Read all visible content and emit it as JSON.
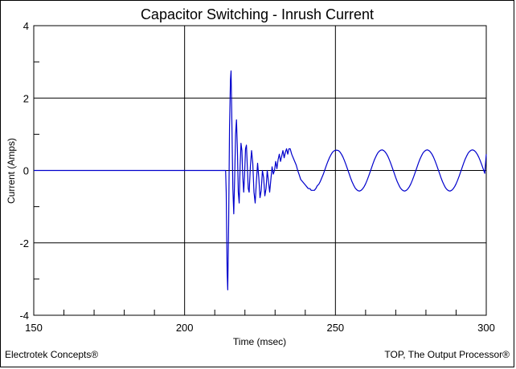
{
  "chart_data": {
    "type": "line",
    "title": "Capacitor Switching - Inrush Current",
    "xlabel": "Time (msec)",
    "ylabel": "Current (Amps)",
    "xlim": [
      150,
      300
    ],
    "ylim": [
      -4,
      4
    ],
    "x_ticks": [
      "150",
      "200",
      "250",
      "300"
    ],
    "y_ticks": [
      "4",
      "2",
      "0",
      "-2",
      "-4"
    ],
    "grid": true,
    "series": [
      {
        "color": "#0000cc",
        "points": [
          [
            150,
            0
          ],
          [
            213.6,
            0
          ],
          [
            213.8,
            -0.6
          ],
          [
            214.1,
            -2.8
          ],
          [
            214.3,
            -3.3
          ],
          [
            214.6,
            -1.5
          ],
          [
            214.9,
            1.2
          ],
          [
            215.2,
            2.5
          ],
          [
            215.4,
            2.75
          ],
          [
            215.7,
            1.2
          ],
          [
            216.0,
            -0.5
          ],
          [
            216.3,
            -1.2
          ],
          [
            216.6,
            -0.2
          ],
          [
            216.9,
            1.0
          ],
          [
            217.2,
            1.4
          ],
          [
            217.5,
            0.6
          ],
          [
            217.8,
            -0.6
          ],
          [
            218.1,
            -0.9
          ],
          [
            218.4,
            0.1
          ],
          [
            218.7,
            0.75
          ],
          [
            219.0,
            0.55
          ],
          [
            219.3,
            -0.2
          ],
          [
            219.6,
            -0.6
          ],
          [
            219.9,
            -0.1
          ],
          [
            220.2,
            0.6
          ],
          [
            220.5,
            0.7
          ],
          [
            220.8,
            0.1
          ],
          [
            221.1,
            -0.5
          ],
          [
            221.4,
            -0.6
          ],
          [
            221.8,
            0.1
          ],
          [
            222.2,
            0.55
          ],
          [
            222.6,
            0.2
          ],
          [
            223.0,
            -0.6
          ],
          [
            223.4,
            -0.9
          ],
          [
            223.8,
            -0.3
          ],
          [
            224.2,
            0.2
          ],
          [
            224.6,
            -0.2
          ],
          [
            225.0,
            -0.75
          ],
          [
            225.4,
            -0.55
          ],
          [
            225.8,
            0.0
          ],
          [
            226.2,
            -0.2
          ],
          [
            226.6,
            -0.7
          ],
          [
            227.0,
            -0.5
          ],
          [
            227.4,
            0.0
          ],
          [
            227.8,
            -0.3
          ],
          [
            228.2,
            -0.6
          ],
          [
            228.6,
            -0.25
          ],
          [
            229.0,
            0.1
          ],
          [
            229.4,
            -0.1
          ],
          [
            229.8,
            0.0
          ],
          [
            230.2,
            0.25
          ],
          [
            230.6,
            0.05
          ],
          [
            231.0,
            0.3
          ],
          [
            231.4,
            0.45
          ],
          [
            231.8,
            0.25
          ],
          [
            232.2,
            0.4
          ],
          [
            232.6,
            0.55
          ],
          [
            233.0,
            0.35
          ],
          [
            233.4,
            0.5
          ],
          [
            233.8,
            0.6
          ],
          [
            234.2,
            0.45
          ],
          [
            234.6,
            0.6
          ],
          [
            235.0,
            0.6
          ],
          [
            235.5,
            0.45
          ],
          [
            236.0,
            0.35
          ],
          [
            236.5,
            0.25
          ],
          [
            237.0,
            0.15
          ],
          [
            237.5,
            0.0
          ],
          [
            238.0,
            -0.12
          ],
          [
            238.5,
            -0.25
          ],
          [
            239.0,
            -0.3
          ],
          [
            239.5,
            -0.35
          ],
          [
            240.0,
            -0.4
          ],
          [
            240.5,
            -0.45
          ],
          [
            241.0,
            -0.5
          ],
          [
            241.5,
            -0.5
          ],
          [
            242.0,
            -0.55
          ],
          [
            242.5,
            -0.55
          ],
          [
            243.0,
            -0.55
          ],
          [
            243.5,
            -0.5
          ],
          [
            244.0,
            -0.42
          ],
          [
            244.5,
            -0.38
          ],
          [
            245.0,
            -0.3
          ],
          [
            245.5,
            -0.2
          ],
          [
            246.0,
            -0.1
          ],
          [
            246.5,
            0.02
          ],
          [
            247.0,
            0.14
          ],
          [
            247.5,
            0.25
          ],
          [
            248.0,
            0.35
          ],
          [
            248.5,
            0.43
          ],
          [
            249.0,
            0.5
          ],
          [
            249.5,
            0.54
          ],
          [
            250.0,
            0.56
          ],
          [
            250.5,
            0.56
          ],
          [
            251.0,
            0.55
          ],
          [
            251.5,
            0.51
          ],
          [
            252.0,
            0.45
          ],
          [
            252.5,
            0.37
          ],
          [
            253.0,
            0.27
          ],
          [
            253.5,
            0.16
          ],
          [
            254.0,
            0.04
          ],
          [
            254.5,
            -0.08
          ],
          [
            255.0,
            -0.2
          ],
          [
            255.5,
            -0.31
          ],
          [
            256.0,
            -0.4
          ],
          [
            256.5,
            -0.48
          ],
          [
            257.0,
            -0.53
          ],
          [
            257.5,
            -0.56
          ],
          [
            258.0,
            -0.57
          ],
          [
            258.5,
            -0.55
          ],
          [
            259.0,
            -0.51
          ],
          [
            259.5,
            -0.45
          ],
          [
            260.0,
            -0.37
          ],
          [
            260.5,
            -0.27
          ],
          [
            261.0,
            -0.16
          ],
          [
            261.5,
            -0.04
          ],
          [
            262.0,
            0.08
          ],
          [
            262.5,
            0.2
          ],
          [
            263.0,
            0.31
          ],
          [
            263.5,
            0.4
          ],
          [
            264.0,
            0.48
          ],
          [
            264.5,
            0.53
          ],
          [
            265.0,
            0.56
          ],
          [
            265.5,
            0.57
          ],
          [
            266.0,
            0.55
          ],
          [
            266.5,
            0.51
          ],
          [
            267.0,
            0.45
          ],
          [
            267.5,
            0.37
          ],
          [
            268.0,
            0.27
          ],
          [
            268.5,
            0.16
          ],
          [
            269.0,
            0.04
          ],
          [
            269.5,
            -0.08
          ],
          [
            270.0,
            -0.2
          ],
          [
            270.5,
            -0.31
          ],
          [
            271.0,
            -0.4
          ],
          [
            271.5,
            -0.48
          ],
          [
            272.0,
            -0.53
          ],
          [
            272.5,
            -0.56
          ],
          [
            273.0,
            -0.57
          ],
          [
            273.5,
            -0.55
          ],
          [
            274.0,
            -0.51
          ],
          [
            274.5,
            -0.45
          ],
          [
            275.0,
            -0.37
          ],
          [
            275.5,
            -0.27
          ],
          [
            276.0,
            -0.16
          ],
          [
            276.5,
            -0.04
          ],
          [
            277.0,
            0.08
          ],
          [
            277.5,
            0.2
          ],
          [
            278.0,
            0.31
          ],
          [
            278.5,
            0.4
          ],
          [
            279.0,
            0.48
          ],
          [
            279.5,
            0.53
          ],
          [
            280.0,
            0.56
          ],
          [
            280.5,
            0.57
          ],
          [
            281.0,
            0.55
          ],
          [
            281.5,
            0.51
          ],
          [
            282.0,
            0.45
          ],
          [
            282.5,
            0.37
          ],
          [
            283.0,
            0.27
          ],
          [
            283.5,
            0.16
          ],
          [
            284.0,
            0.04
          ],
          [
            284.5,
            -0.08
          ],
          [
            285.0,
            -0.2
          ],
          [
            285.5,
            -0.31
          ],
          [
            286.0,
            -0.4
          ],
          [
            286.5,
            -0.48
          ],
          [
            287.0,
            -0.53
          ],
          [
            287.5,
            -0.56
          ],
          [
            288.0,
            -0.57
          ],
          [
            288.5,
            -0.55
          ],
          [
            289.0,
            -0.51
          ],
          [
            289.5,
            -0.45
          ],
          [
            290.0,
            -0.37
          ],
          [
            290.5,
            -0.27
          ],
          [
            291.0,
            -0.16
          ],
          [
            291.5,
            -0.04
          ],
          [
            292.0,
            0.08
          ],
          [
            292.5,
            0.2
          ],
          [
            293.0,
            0.31
          ],
          [
            293.5,
            0.4
          ],
          [
            294.0,
            0.48
          ],
          [
            294.5,
            0.53
          ],
          [
            295.0,
            0.56
          ],
          [
            295.5,
            0.57
          ],
          [
            296.0,
            0.55
          ],
          [
            296.5,
            0.51
          ],
          [
            297.0,
            0.45
          ],
          [
            297.5,
            0.37
          ],
          [
            298.0,
            0.27
          ],
          [
            298.5,
            0.16
          ],
          [
            299.0,
            0.04
          ],
          [
            299.5,
            -0.08
          ],
          [
            300.0,
            0.45
          ]
        ]
      }
    ]
  },
  "footer": {
    "left": "Electrotek Concepts®",
    "right": "TOP, The Output Processor®"
  }
}
